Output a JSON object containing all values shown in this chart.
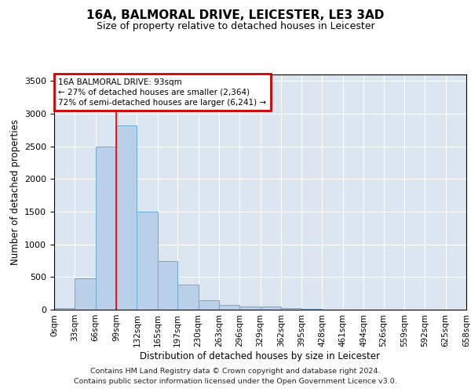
{
  "title": "16A, BALMORAL DRIVE, LEICESTER, LE3 3AD",
  "subtitle": "Size of property relative to detached houses in Leicester",
  "xlabel": "Distribution of detached houses by size in Leicester",
  "ylabel": "Number of detached properties",
  "bin_edges": [
    0,
    33,
    66,
    99,
    132,
    165,
    197,
    230,
    263,
    296,
    329,
    362,
    395,
    428,
    461,
    494,
    526,
    559,
    592,
    625,
    658
  ],
  "bar_heights": [
    25,
    480,
    2500,
    2820,
    1500,
    750,
    380,
    140,
    70,
    50,
    50,
    30,
    15,
    5,
    0,
    0,
    0,
    0,
    0,
    0
  ],
  "bar_color": "#b8d0e8",
  "bar_edge_color": "#6aaad4",
  "background_color": "#dce6f0",
  "red_line_x": 99,
  "ylim": [
    0,
    3600
  ],
  "yticks": [
    0,
    500,
    1000,
    1500,
    2000,
    2500,
    3000,
    3500
  ],
  "annotation_text": "16A BALMORAL DRIVE: 93sqm\n← 27% of detached houses are smaller (2,364)\n72% of semi-detached houses are larger (6,241) →",
  "annotation_box_edgecolor": "#cc0000",
  "footer_line1": "Contains HM Land Registry data © Crown copyright and database right 2024.",
  "footer_line2": "Contains public sector information licensed under the Open Government Licence v3.0."
}
